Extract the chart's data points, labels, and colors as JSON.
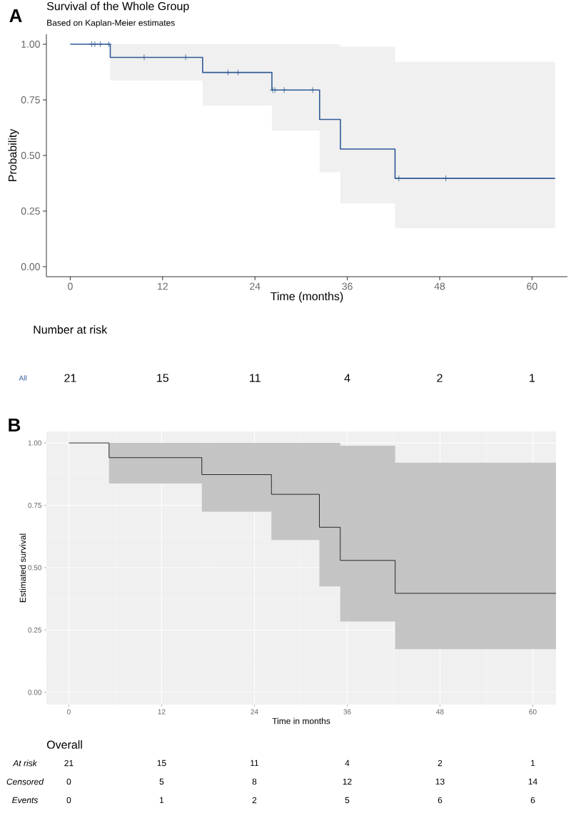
{
  "chart_data": [
    {
      "type": "step",
      "title": "Survival of the Whole Group",
      "subtitle": "Based on Kaplan-Meier estimates",
      "xlabel": "Time (months)",
      "ylabel": "Probability",
      "annotations": [
        "A"
      ],
      "xlim": [
        -3.1,
        64.6
      ],
      "ylim": [
        -0.045,
        1.045
      ],
      "xticks": [
        0,
        12,
        24,
        36,
        48,
        60
      ],
      "yticks": [
        {
          "value": 0,
          "label": "0.00"
        },
        {
          "value": 0.25,
          "label": "0.25"
        },
        {
          "value": 0.5,
          "label": "0.50"
        },
        {
          "value": 0.75,
          "label": "0.75"
        },
        {
          "value": 1,
          "label": "1.00"
        }
      ],
      "series": [
        {
          "type": "step",
          "color": "#2e5a96",
          "x": [
            0,
            5.2,
            17.2,
            26.2,
            32.4,
            35.1,
            42.2,
            63
          ],
          "values": [
            1,
            0.941,
            0.873,
            0.794,
            0.662,
            0.529,
            0.397,
            0.397
          ],
          "lower": [
            1,
            0.837,
            0.724,
            0.611,
            0.425,
            0.284,
            0.173,
            0.173
          ],
          "upper": [
            1,
            1,
            1,
            1,
            1,
            0.989,
            0.921,
            0.921
          ]
        },
        {
          "type": "scatter",
          "marker": "cross",
          "color": "#2e5a96",
          "x": [
            2.8,
            3.2,
            3.9,
            5.0,
            9.6,
            15.0,
            20.5,
            21.8,
            26.3,
            26.6,
            27.8,
            31.5,
            42.7,
            48.8
          ],
          "values": [
            1,
            1,
            1,
            1,
            0.941,
            0.941,
            0.873,
            0.873,
            0.794,
            0.794,
            0.794,
            0.794,
            0.397,
            0.397
          ]
        }
      ]
    },
    {
      "type": "other",
      "title": "Number at risk",
      "categories": [
        null,
        null,
        null,
        null,
        null,
        null
      ],
      "data_labels": true,
      "series": [
        {
          "name": "All",
          "color": "#2e5a96",
          "values": [
            21,
            15,
            11,
            4,
            2,
            1
          ]
        }
      ]
    },
    {
      "type": "step",
      "xlabel": "Time in months",
      "ylabel": "Estimated survival",
      "annotations": [
        "B"
      ],
      "xlim": [
        -2.9,
        63
      ],
      "ylim": [
        -0.049,
        1.046
      ],
      "xticks": [
        0,
        12,
        24,
        36,
        48,
        60
      ],
      "yticks": [
        {
          "value": 0,
          "label": "0.00"
        },
        {
          "value": 0.25,
          "label": "0.25"
        },
        {
          "value": 0.5,
          "label": "0.50"
        },
        {
          "value": 0.75,
          "label": "0.75"
        },
        {
          "value": 1,
          "label": "1.00"
        }
      ],
      "grid": true,
      "series": [
        {
          "type": "step",
          "color": "#1a1a1a",
          "x": [
            0,
            5.2,
            17.2,
            26.2,
            32.4,
            35.1,
            42.2,
            63
          ],
          "values": [
            1,
            0.941,
            0.873,
            0.794,
            0.662,
            0.529,
            0.397,
            0.397
          ],
          "lower": [
            1,
            0.837,
            0.724,
            0.611,
            0.425,
            0.284,
            0.173,
            0.173
          ],
          "upper": [
            1,
            1,
            1,
            1,
            1,
            0.989,
            0.921,
            0.921
          ]
        }
      ]
    },
    {
      "type": "other",
      "title": "Overall",
      "categories": [
        null,
        null,
        null,
        null,
        null,
        null
      ],
      "data_labels": true,
      "series": [
        {
          "name": "At risk",
          "color": "#000000",
          "values": [
            21,
            15,
            11,
            4,
            2,
            1
          ]
        }
      ]
    },
    {
      "type": "other",
      "categories": [
        null,
        null,
        null,
        null,
        null,
        null
      ],
      "data_labels": true,
      "series": [
        {
          "name": "Censored",
          "color": "#000000",
          "values": [
            0,
            5,
            8,
            12,
            13,
            14
          ]
        }
      ]
    },
    {
      "type": "other",
      "categories": [
        null,
        null,
        null,
        null,
        null,
        null
      ],
      "data_labels": true,
      "series": [
        {
          "name": "Events",
          "color": "#000000",
          "values": [
            0,
            1,
            2,
            5,
            6,
            6
          ]
        }
      ]
    }
  ]
}
